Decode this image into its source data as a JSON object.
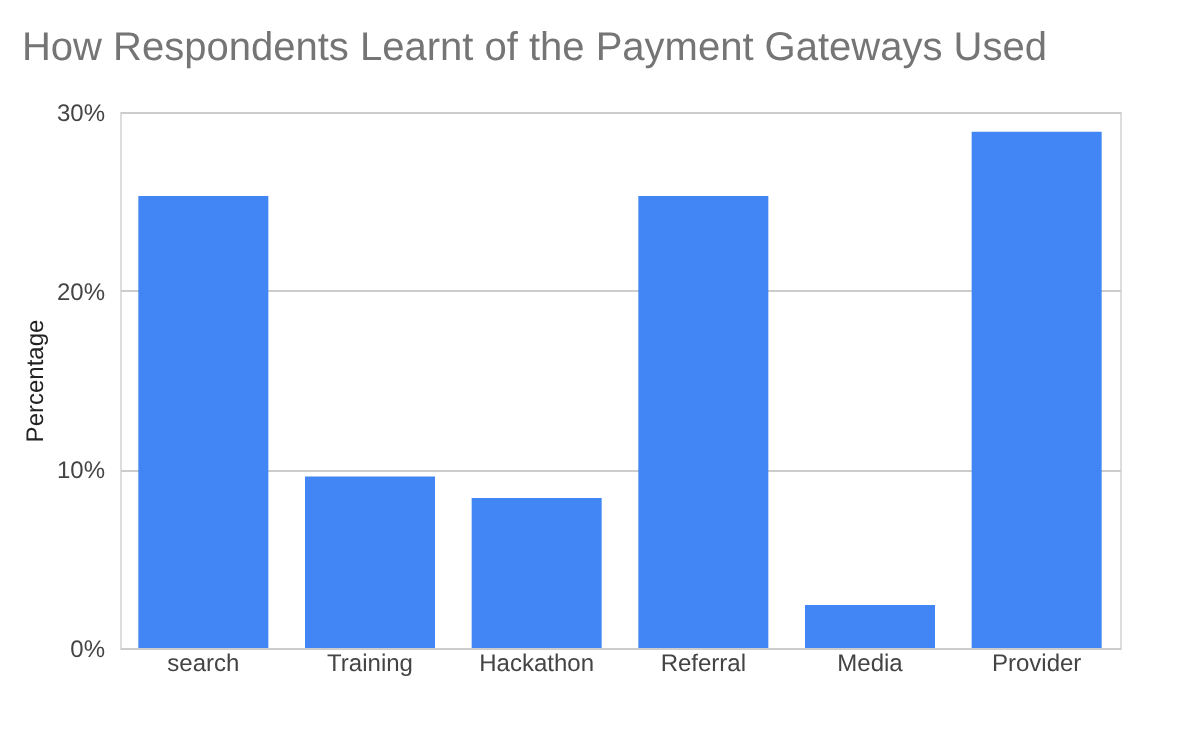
{
  "chart_data": {
    "type": "bar",
    "title": "How Respondents Learnt of the Payment Gateways Used",
    "ylabel": "Percentage",
    "categories": [
      "search",
      "Training",
      "Hackathon",
      "Referral",
      "Media",
      "Provider"
    ],
    "values": [
      25.3,
      9.6,
      8.4,
      25.3,
      2.4,
      28.9
    ],
    "color": "#4285f4",
    "ylim": [
      0,
      30
    ],
    "yticks": [
      {
        "value": 0,
        "label": "0%"
      },
      {
        "value": 10,
        "label": "10%"
      },
      {
        "value": 20,
        "label": "20%"
      },
      {
        "value": 30,
        "label": "30%"
      }
    ],
    "grid": "y"
  }
}
